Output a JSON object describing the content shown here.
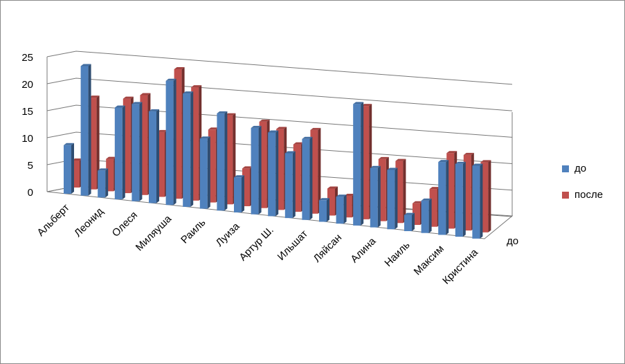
{
  "chart_data": {
    "type": "bar3d",
    "categories": [
      "Альберт",
      null,
      "Леонид",
      null,
      "Олеся",
      null,
      "Миляуша",
      null,
      "Раиль",
      null,
      "Луиза",
      null,
      "Артур Ш.",
      null,
      "Ильшат",
      null,
      "Ляйсан",
      null,
      "Алина",
      null,
      "Наиль",
      null,
      "Максим",
      null,
      "Кристина"
    ],
    "series": [
      {
        "name": "до",
        "color": "#4f81bd",
        "values": [
          9,
          24,
          5,
          17,
          18,
          17,
          23,
          21,
          13,
          18,
          6.5,
          16,
          15.5,
          12,
          15,
          4,
          5,
          22.5,
          11,
          11,
          3,
          6,
          13.5,
          13.5,
          13.5
        ]
      },
      {
        "name": "после",
        "color": "#c0504d",
        "values": [
          5,
          17,
          6,
          17.5,
          18.5,
          12,
          24,
          21,
          13.5,
          16.5,
          7,
          16,
          15,
          12.5,
          15.5,
          5,
          4,
          21,
          11.5,
          11.5,
          4,
          7,
          14,
          14,
          13
        ]
      }
    ],
    "series_axis_labels": [
      "до"
    ],
    "ylim": [
      0,
      25
    ],
    "yticks": [
      0,
      5,
      10,
      15,
      20,
      25
    ],
    "grid": true,
    "legend": "right"
  }
}
